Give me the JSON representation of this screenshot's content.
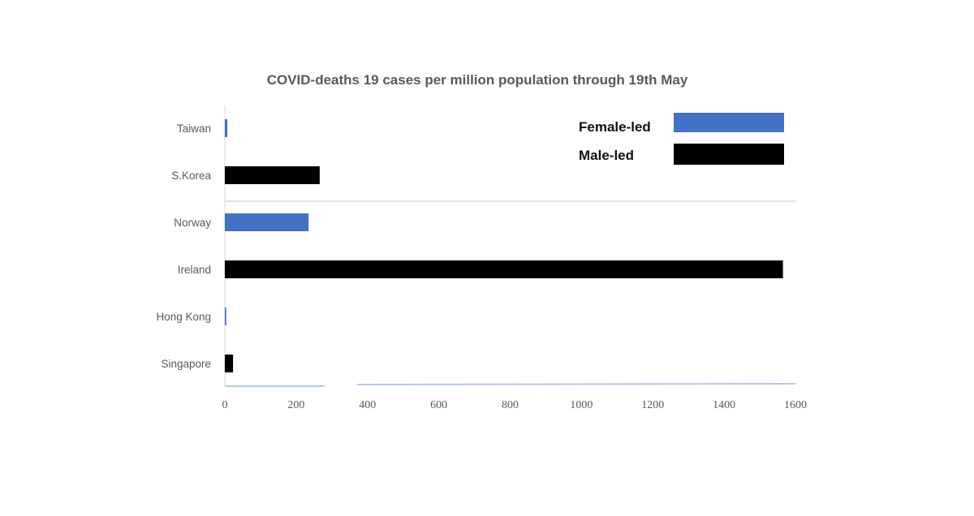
{
  "chart_data": {
    "type": "bar",
    "orientation": "horizontal",
    "title": "COVID-deaths 19 cases per million population through 19th May",
    "categories": [
      "Taiwan",
      "S.Korea",
      "Norway",
      "Ireland",
      "Hong Kong",
      "Singapore"
    ],
    "values": [
      7,
      266,
      235,
      1565,
      4,
      23
    ],
    "groups": [
      "Female-led",
      "Male-led",
      "Female-led",
      "Male-led",
      "Female-led",
      "Male-led"
    ],
    "legend": [
      {
        "name": "Female-led",
        "color": "#4472C4"
      },
      {
        "name": "Male-led",
        "color": "#000000"
      }
    ],
    "xlim": [
      0,
      1600
    ],
    "xticks": [
      "0",
      "200",
      "400",
      "600",
      "800",
      "1000",
      "1200",
      "1400",
      "1600"
    ],
    "xlabel": "",
    "ylabel": "",
    "legend_position": "top-right",
    "grid": false
  }
}
